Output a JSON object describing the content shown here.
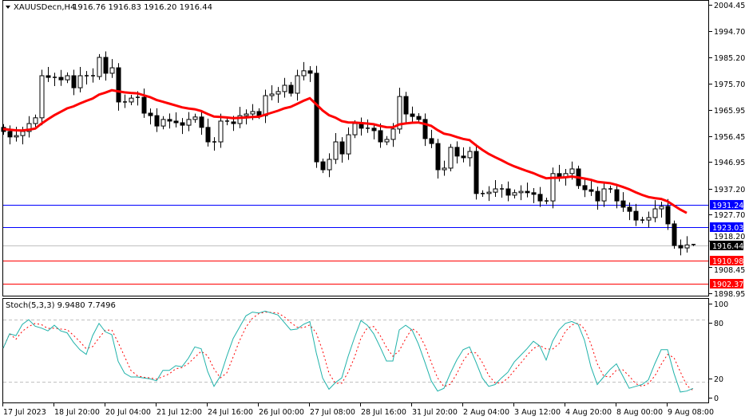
{
  "header": {
    "symbol_label": "XAUUSDecn,H4",
    "ohlc": "1916.76 1916.83 1916.20 1916.44",
    "collapse_icon": "triangle-down-icon"
  },
  "stoch_header": "Stoch(5,3,3) 9.9480 7.7496",
  "colors": {
    "bull_body": "#ffffff",
    "bear_body": "#000000",
    "moving_average": "#ff0000",
    "stoch_main": "#20b2aa",
    "stoch_signal": "#ff0000",
    "resistance_lines": "#0000ff",
    "support_lines": "#ff0000",
    "current_price": "#000000"
  },
  "chart_data": [
    {
      "type": "candlestick",
      "title": "XAUUSDecn,H4",
      "ylim": [
        1897,
        2006
      ],
      "price_ticks": [
        "2004.45",
        "1994.70",
        "1985.20",
        "1975.70",
        "1965.95",
        "1956.45",
        "1946.95",
        "1937.20",
        "1927.70",
        "1918.20",
        "1908.45",
        "1898.95"
      ],
      "time_ticks": [
        "17 Jul 2023",
        "18 Jul 20:00",
        "20 Jul 04:00",
        "21 Jul 12:00",
        "24 Jul 16:00",
        "26 Jul 00:00",
        "27 Jul 08:00",
        "28 Jul 16:00",
        "31 Jul 20:00",
        "2 Aug 04:00",
        "3 Aug 12:00",
        "4 Aug 20:00",
        "8 Aug 00:00",
        "9 Aug 08:00"
      ],
      "closes": [
        1958.1,
        1956.1,
        1956.6,
        1958.1,
        1961.0,
        1963.1,
        1978.5,
        1977.9,
        1977.9,
        1977.0,
        1978.5,
        1974.1,
        1978.5,
        1978.5,
        1978.2,
        1985.2,
        1979.4,
        1981.4,
        1968.9,
        1968.9,
        1970.3,
        1970.6,
        1964.8,
        1963.9,
        1960.1,
        1962.5,
        1961.9,
        1961.3,
        1960.4,
        1962.5,
        1963.4,
        1959.6,
        1954.3,
        1954.3,
        1961.9,
        1961.6,
        1961.0,
        1963.9,
        1964.5,
        1965.4,
        1963.9,
        1971.2,
        1971.8,
        1972.7,
        1975.0,
        1972.1,
        1978.5,
        1980.3,
        1979.4,
        1947.0,
        1944.1,
        1947.9,
        1954.3,
        1949.9,
        1956.9,
        1961.0,
        1959.3,
        1959.3,
        1958.4,
        1954.3,
        1955.2,
        1959.0,
        1970.9,
        1964.5,
        1963.6,
        1962.5,
        1955.5,
        1953.7,
        1944.1,
        1944.7,
        1952.3,
        1949.1,
        1948.5,
        1950.8,
        1935.4,
        1935.4,
        1935.9,
        1937.1,
        1937.1,
        1934.8,
        1935.7,
        1936.2,
        1935.7,
        1935.1,
        1932.7,
        1932.7,
        1942.7,
        1941.5,
        1942.7,
        1944.4,
        1938.3,
        1936.8,
        1936.2,
        1932.7,
        1937.1,
        1936.8,
        1932.7,
        1930.4,
        1928.9,
        1925.7,
        1925.7,
        1926.6,
        1929.8,
        1930.7,
        1924.3,
        1916.4,
        1915.5,
        1916.6,
        1916.44
      ],
      "last_bar": {
        "open": 1916.76,
        "high": 1916.83,
        "low": 1916.2,
        "close": 1916.44
      },
      "moving_average": {
        "color": "#ff0000"
      },
      "horizontal_levels": [
        {
          "value": "1931.24",
          "color": "#0000ff"
        },
        {
          "value": "1923.03",
          "color": "#0000ff"
        },
        {
          "value": "1910.98",
          "color": "#ff0000"
        },
        {
          "value": "1902.37",
          "color": "#ff0000"
        }
      ],
      "current_price": "1916.44"
    },
    {
      "type": "line",
      "title": "Stoch(5,3,3) 9.9480 7.7496",
      "ylim": [
        0,
        100
      ],
      "y_ticks": [
        "100",
        "80",
        "20",
        "0"
      ],
      "levels": [
        80,
        20
      ],
      "k_values": [
        52.6,
        68,
        66,
        78,
        83,
        76,
        74,
        71,
        77,
        71,
        69,
        59,
        51,
        46,
        66,
        79,
        70,
        67,
        38.6,
        26,
        22,
        22,
        21,
        20,
        18,
        29,
        29,
        34,
        33,
        42,
        54,
        52,
        28,
        12,
        23,
        44,
        63,
        75,
        87,
        91,
        90,
        92,
        90,
        88,
        80,
        72,
        73,
        78,
        81,
        48,
        21,
        9,
        16,
        21,
        44,
        64,
        82,
        77,
        68,
        54,
        39,
        39,
        72,
        77,
        72,
        57,
        38,
        18,
        7,
        10,
        26,
        40,
        51,
        54,
        38,
        21,
        12,
        14,
        21,
        27,
        38,
        45,
        52,
        60,
        55,
        40,
        60,
        72,
        79,
        81,
        78,
        61,
        33,
        14,
        22,
        30,
        36,
        23,
        10,
        12,
        14,
        19,
        36,
        51,
        51,
        26,
        6,
        7,
        9.948
      ],
      "last_k": 9.948,
      "last_d": 7.7496
    }
  ]
}
